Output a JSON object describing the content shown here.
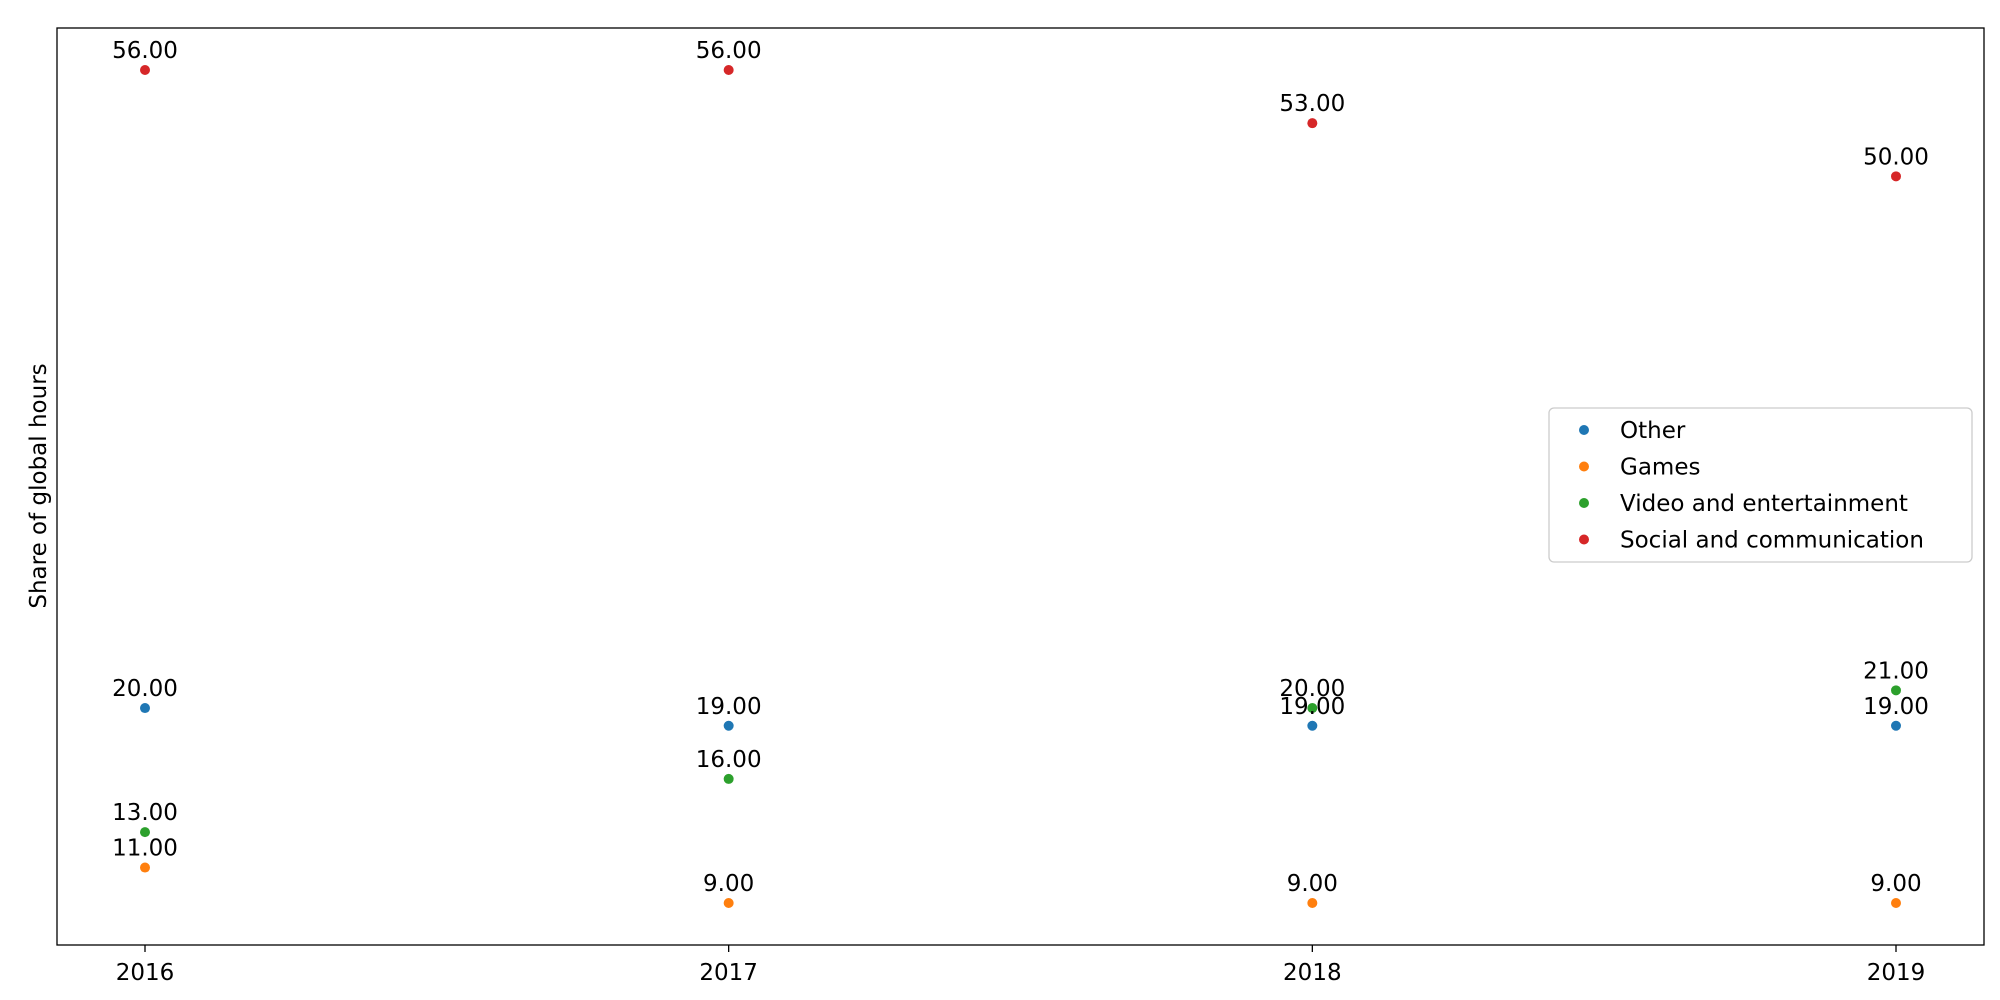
{
  "chart_data": {
    "type": "scatter",
    "title": "",
    "xlabel": "",
    "ylabel": "Share of global hours",
    "categories": [
      "2016",
      "2017",
      "2018",
      "2019"
    ],
    "series": [
      {
        "name": "Other",
        "color": "#1f77b4",
        "values": [
          20,
          19,
          19,
          19
        ],
        "labels": [
          "20.00",
          "19.00",
          "19.00",
          "19.00"
        ]
      },
      {
        "name": "Games",
        "color": "#ff7f0e",
        "values": [
          11,
          9,
          9,
          9
        ],
        "labels": [
          "11.00",
          "9.00",
          "9.00",
          "9.00"
        ]
      },
      {
        "name": "Video and entertainment",
        "color": "#2ca02c",
        "values": [
          13,
          16,
          20,
          21
        ],
        "labels": [
          "13.00",
          "16.00",
          "20.00",
          "21.00"
        ]
      },
      {
        "name": "Social and communication",
        "color": "#d62728",
        "values": [
          56,
          56,
          53,
          50
        ],
        "labels": [
          "56.00",
          "56.00",
          "53.00",
          "50.00"
        ]
      }
    ],
    "ylim": [
      6.63,
      58.37
    ],
    "y_ticks_shown": false,
    "grid": false,
    "legend_position": "center-right"
  }
}
